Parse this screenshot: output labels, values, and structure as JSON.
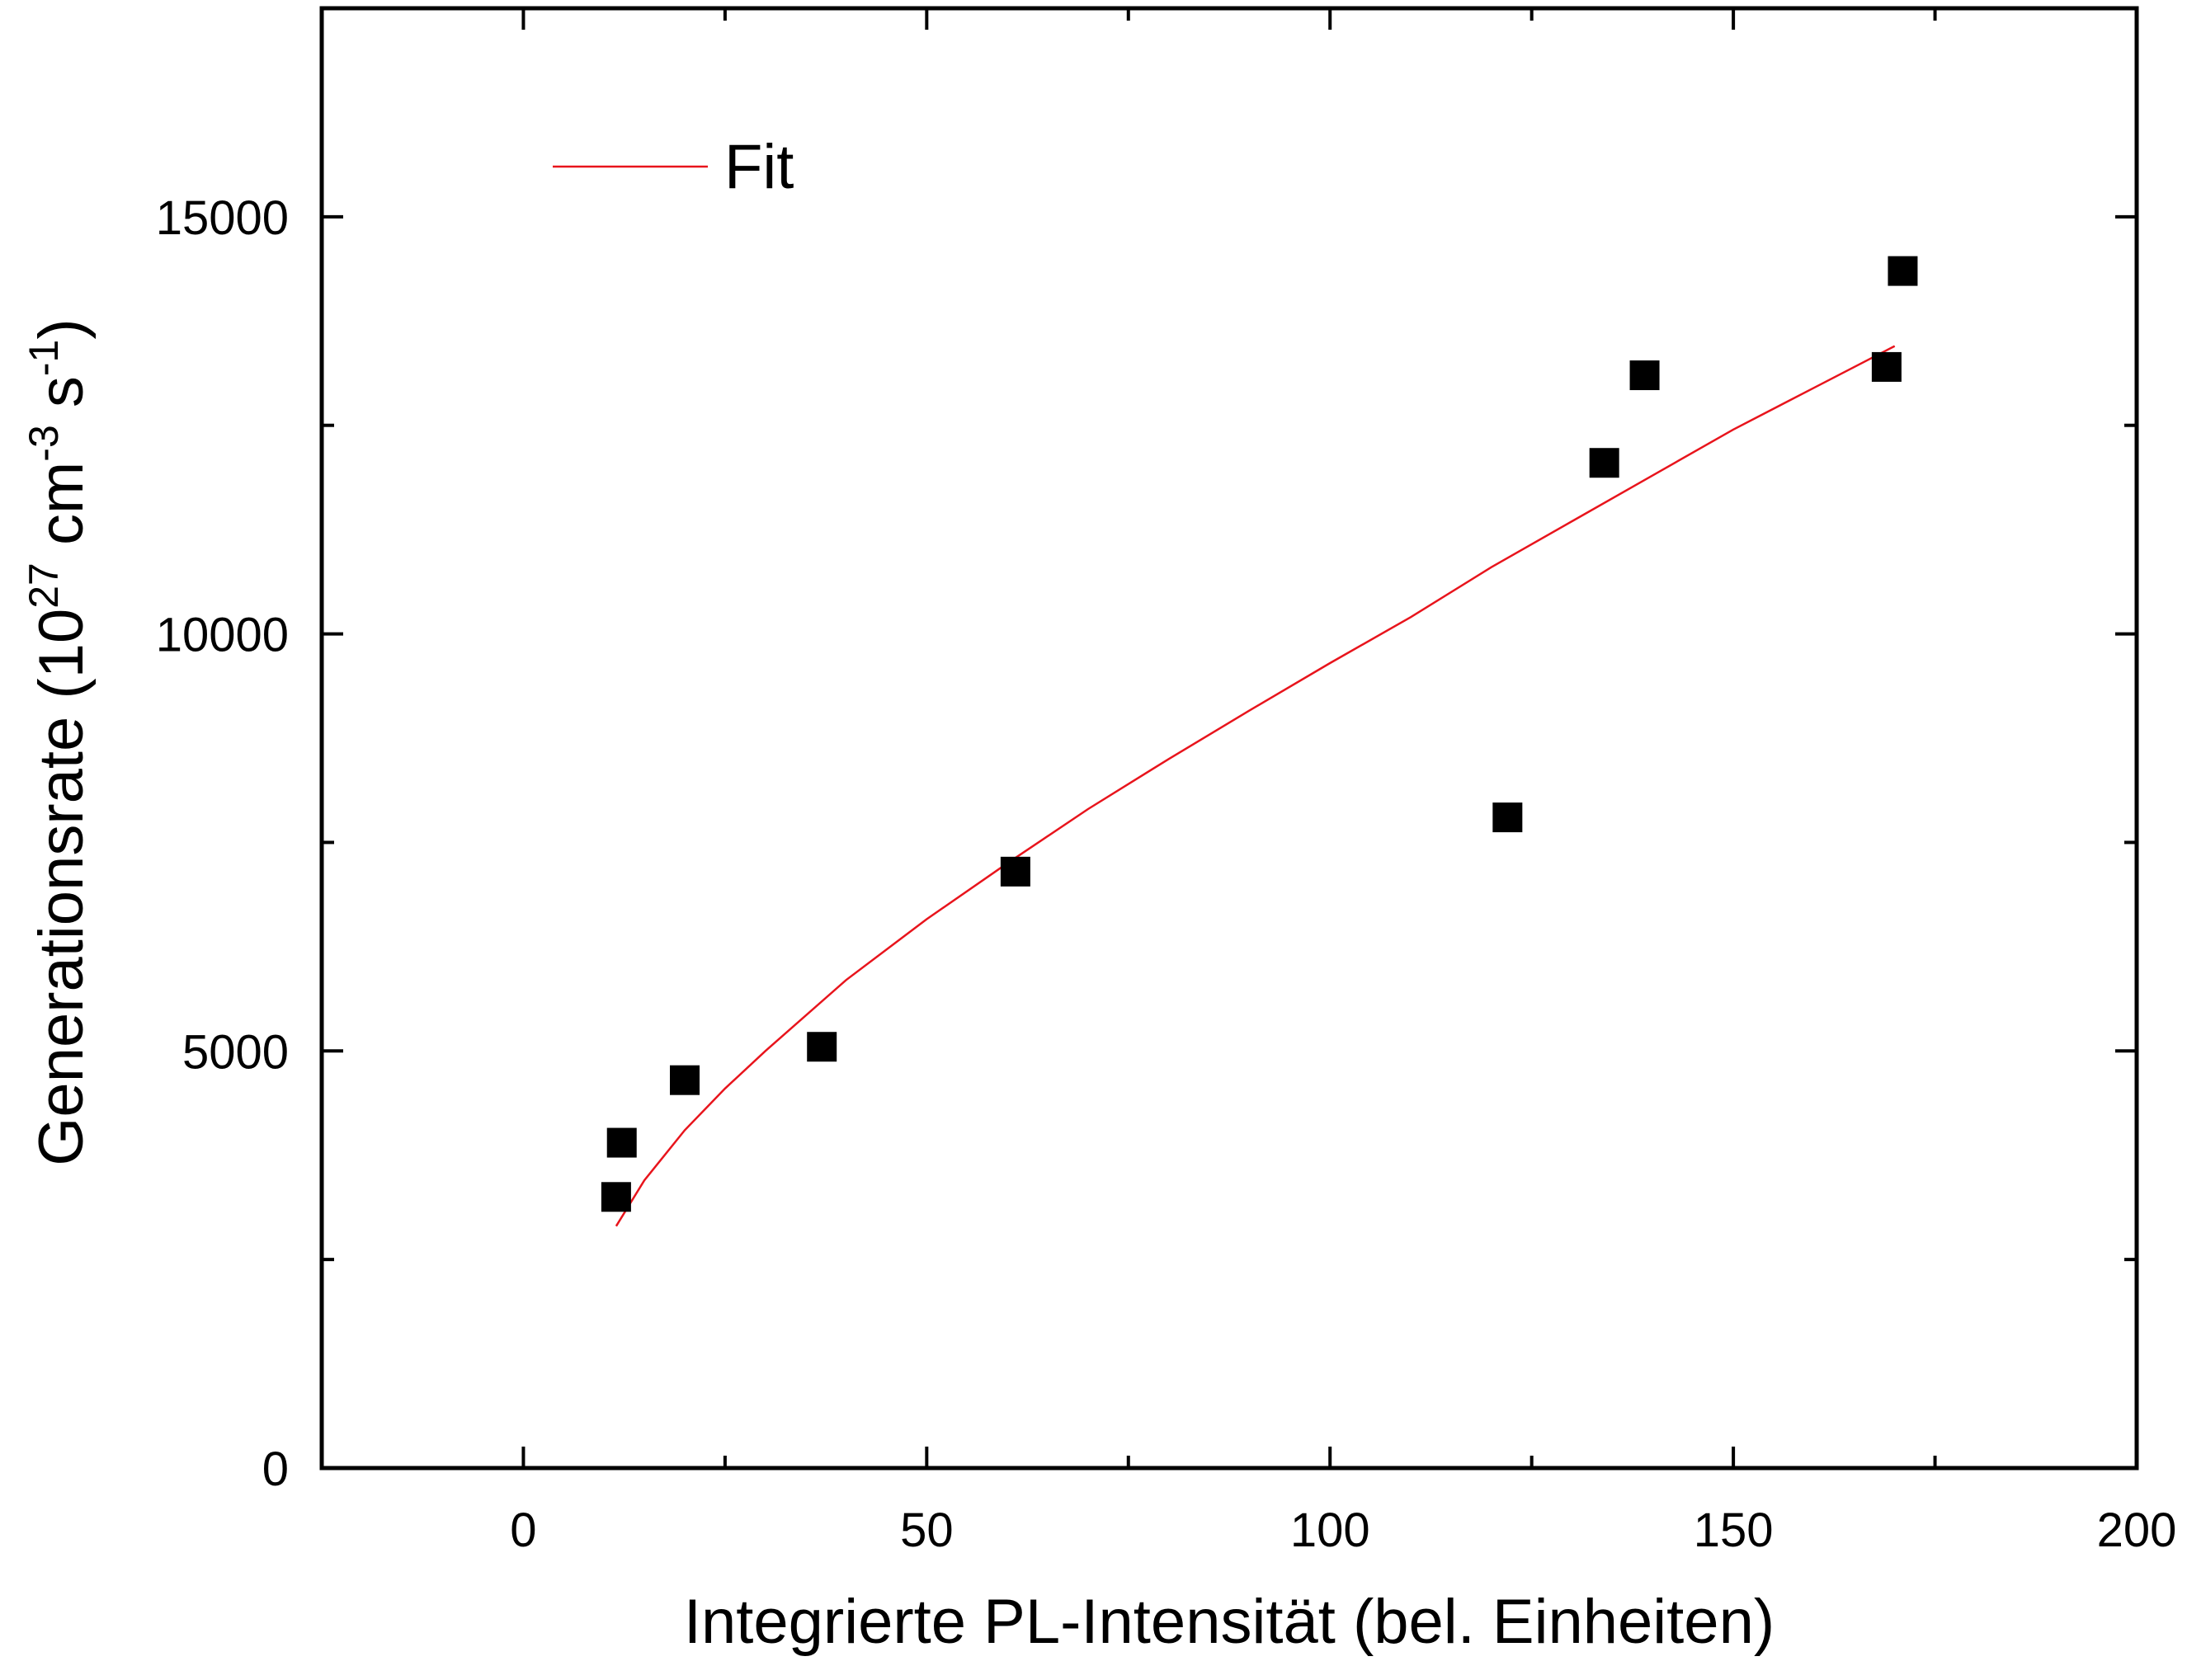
{
  "chart_data": {
    "type": "scatter",
    "xlabel": "Integrierte PL-Intensität (bel. Einheiten)",
    "ylabel": {
      "prefix": "Generationsrate (10",
      "exp1": "27",
      "mid1": " cm",
      "exp2": "-3",
      "mid2": " s",
      "exp3": "-1",
      "suffix": ")"
    },
    "xlim": [
      -25,
      200
    ],
    "ylim": [
      0,
      17500
    ],
    "x_ticks": [
      0,
      50,
      100,
      150,
      200
    ],
    "x_tick_labels": [
      "0",
      "50",
      "100",
      "150",
      "200"
    ],
    "x_minor_ticks": [
      -25,
      25,
      75,
      125,
      175
    ],
    "y_ticks": [
      0,
      5000,
      10000,
      15000
    ],
    "y_tick_labels": [
      "0",
      "5000",
      "10000",
      "15000"
    ],
    "y_minor_ticks": [
      2500,
      7500,
      12500
    ],
    "grid": false,
    "legend": {
      "position": "top-left",
      "label": "Fit"
    },
    "colors": {
      "fit": "#e8141c",
      "points": "#000000",
      "axes": "#000000"
    },
    "series": [
      {
        "kind": "scatter",
        "marker": "square",
        "points": [
          [
            11.5,
            3250
          ],
          [
            12.2,
            3900
          ],
          [
            20,
            4650
          ],
          [
            37,
            5050
          ],
          [
            61,
            7150
          ],
          [
            122,
            7800
          ],
          [
            134,
            12050
          ],
          [
            139,
            13100
          ],
          [
            169,
            13200
          ],
          [
            171,
            14350
          ]
        ]
      },
      {
        "name": "Fit",
        "kind": "line",
        "points": [
          [
            11.5,
            2900
          ],
          [
            15,
            3450
          ],
          [
            20,
            4050
          ],
          [
            25,
            4550
          ],
          [
            30,
            5000
          ],
          [
            40,
            5850
          ],
          [
            50,
            6580
          ],
          [
            60,
            7250
          ],
          [
            70,
            7900
          ],
          [
            80,
            8500
          ],
          [
            90,
            9080
          ],
          [
            100,
            9650
          ],
          [
            110,
            10200
          ],
          [
            120,
            10800
          ],
          [
            130,
            11350
          ],
          [
            140,
            11900
          ],
          [
            150,
            12450
          ],
          [
            160,
            12950
          ],
          [
            170,
            13450
          ]
        ]
      }
    ]
  }
}
